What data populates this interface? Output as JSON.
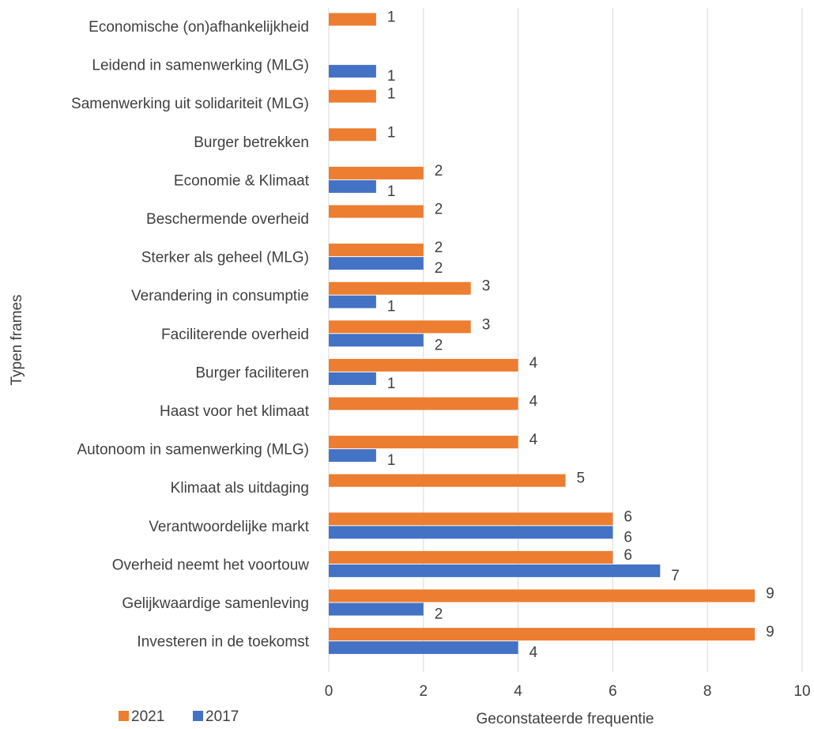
{
  "chart_data": {
    "type": "bar",
    "orientation": "horizontal",
    "title": "",
    "xlabel": "Geconstateerde frequentie",
    "ylabel": "Typen frames",
    "xlim": [
      0,
      10
    ],
    "xticks": [
      0,
      2,
      4,
      6,
      8,
      10
    ],
    "grid": "vertical",
    "legend_position": "bottom-left",
    "categories": [
      "Economische (on)afhankelijkheid",
      "Leidend in samenwerking (MLG)",
      "Samenwerking uit solidariteit (MLG)",
      "Burger betrekken",
      "Economie & Klimaat",
      "Beschermende overheid",
      "Sterker als geheel (MLG)",
      "Verandering in consumptie",
      "Faciliterende overheid",
      "Burger faciliteren",
      "Haast voor het klimaat",
      "Autonoom in samenwerking (MLG)",
      "Klimaat als uitdaging",
      "Verantwoordelijke markt",
      "Overheid neemt het voortouw",
      "Gelijkwaardige samenleving",
      "Investeren in de toekomst"
    ],
    "series": [
      {
        "name": "2021",
        "color": "#ED7D31",
        "values": [
          1,
          null,
          1,
          1,
          2,
          2,
          2,
          3,
          3,
          4,
          4,
          4,
          5,
          6,
          6,
          9,
          9
        ]
      },
      {
        "name": "2017",
        "color": "#4472C4",
        "values": [
          null,
          1,
          null,
          null,
          1,
          null,
          2,
          1,
          2,
          1,
          null,
          1,
          null,
          6,
          7,
          2,
          4
        ]
      }
    ]
  }
}
